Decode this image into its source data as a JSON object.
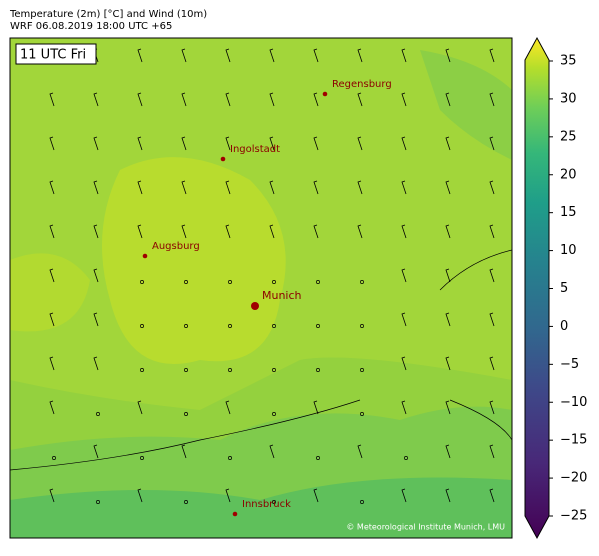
{
  "header": {
    "title": "Temperature (2m) [°C] and Wind (10m)",
    "subtitle": "WRF 06.08.2019 18:00 UTC +65"
  },
  "map": {
    "time_label": "11 UTC Fri",
    "cities": [
      "Regensburg",
      "Ingolstadt",
      "Augsburg",
      "Munich",
      "Innsbruck"
    ],
    "copyright": "© Meteorological Institute Munich, LMU"
  },
  "colorbar": {
    "lim": [
      -25,
      35
    ],
    "ticks": [
      {
        "value": -25,
        "label": "−25"
      },
      {
        "value": -20,
        "label": "−20"
      },
      {
        "value": -15,
        "label": "−15"
      },
      {
        "value": -10,
        "label": "−10"
      },
      {
        "value": -5,
        "label": "−5"
      },
      0,
      5,
      10,
      15,
      20,
      25,
      30,
      35
    ]
  }
}
